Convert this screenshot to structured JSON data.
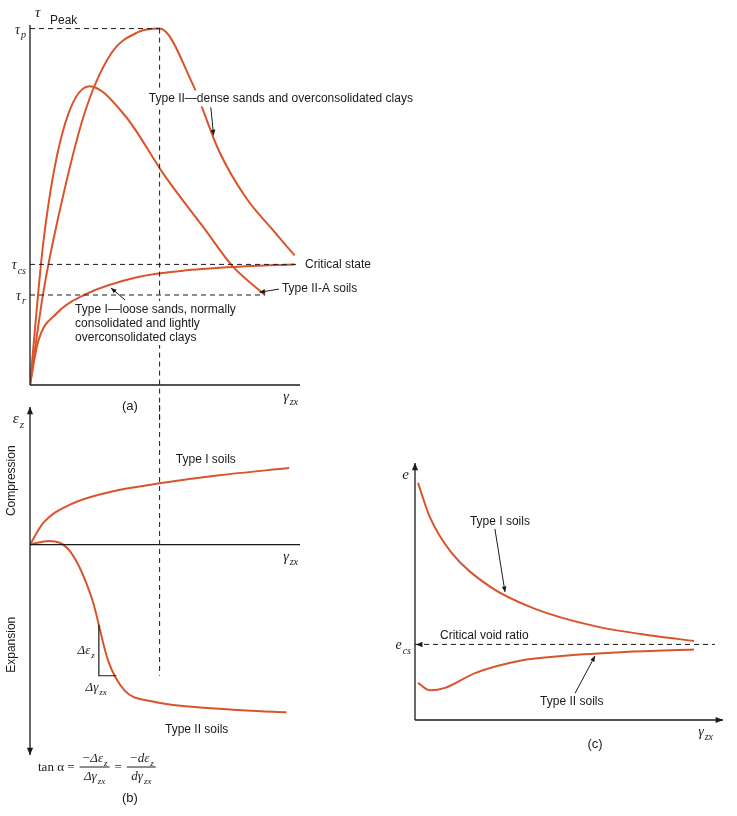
{
  "chart_data": [
    {
      "panel": "(a)",
      "type": "line",
      "tick_labels": false,
      "grid": false,
      "x_label": {
        "base": "γ",
        "sub": "zx"
      },
      "y_label": {
        "base": "τ"
      },
      "xlim": [
        0,
        10
      ],
      "ylim": [
        0,
        10
      ],
      "series": [
        {
          "name": "Type II—dense sands and overconsolidated clays",
          "color": "#d9542b",
          "x": [
            0,
            0.5,
            1,
            2,
            3,
            4,
            4.8,
            6,
            7,
            8,
            9,
            9.8
          ],
          "values": [
            0,
            2.6,
            4.5,
            7.5,
            9.2,
            9.8,
            9.9,
            8.4,
            6.5,
            5.2,
            4.3,
            3.6
          ]
        },
        {
          "name": "Type II-A soils",
          "color": "#d9542b",
          "x": [
            0,
            0.5,
            1.2,
            2.2,
            3.5,
            5,
            6.5,
            7.5,
            8.7
          ],
          "values": [
            0,
            4,
            7,
            8.3,
            7.5,
            5.8,
            4.3,
            3.3,
            2.5
          ]
        },
        {
          "name": "Type I—loose sands, normally consolidated and lightly overconsolidated clays",
          "color": "#d9542b",
          "x": [
            0,
            0.3,
            1,
            2,
            4,
            6,
            8,
            9.8
          ],
          "values": [
            0,
            1.2,
            2,
            2.5,
            3,
            3.2,
            3.3,
            3.35
          ]
        }
      ],
      "reference_lines": [
        {
          "axis": "y",
          "value": 9.9,
          "x_range": [
            0,
            4.8
          ],
          "label": {
            "base": "τ",
            "sub": "p"
          },
          "text": "Peak"
        },
        {
          "axis": "y",
          "value": 3.35,
          "x_range": [
            0,
            10
          ],
          "label": {
            "base": "τ",
            "sub": "cs"
          },
          "text": "Critical state"
        },
        {
          "axis": "y",
          "value": 2.5,
          "x_range": [
            0,
            8.7
          ],
          "label": {
            "base": "τ",
            "sub": "r"
          }
        },
        {
          "axis": "x",
          "value": 4.8,
          "y_range": [
            9.9,
            0
          ]
        }
      ]
    },
    {
      "panel": "(b)",
      "type": "line",
      "tick_labels": false,
      "grid": false,
      "x_label": {
        "base": "γ",
        "sub": "zx"
      },
      "y_label": {
        "base": "ε",
        "sub": "z"
      },
      "y_directions": [
        "Compression",
        "Expansion"
      ],
      "xlim": [
        0,
        10
      ],
      "ylim": [
        -5.5,
        3.5
      ],
      "series": [
        {
          "name": "Type I soils",
          "color": "#d9542b",
          "x": [
            0,
            0.5,
            1.5,
            3,
            5,
            7,
            9.6
          ],
          "values": [
            0,
            0.6,
            1.1,
            1.45,
            1.7,
            1.9,
            2.1
          ]
        },
        {
          "name": "Type II soils",
          "color": "#d9542b",
          "x": [
            0,
            0.7,
            1.5,
            2.3,
            2.9,
            3.5,
            4.5,
            6,
            8,
            9.5
          ],
          "values": [
            0,
            0.1,
            -0.2,
            -1.5,
            -3.2,
            -4,
            -4.3,
            -4.45,
            -4.55,
            -4.6
          ]
        }
      ],
      "reference_lines": [
        {
          "axis": "x",
          "value": 4.8,
          "y_range": [
            3.5,
            -3.6
          ]
        }
      ],
      "tangent": {
        "x": [
          2.55,
          2.55,
          3.2
        ],
        "values": [
          -2.2,
          -3.6,
          -3.6
        ],
        "labels": [
          {
            "base": "Δε",
            "sub": "z"
          },
          {
            "base": "Δγ",
            "sub": "zx"
          }
        ]
      },
      "formula": {
        "lhs": "tan α =",
        "joiner": "=",
        "fractions": [
          {
            "num": {
              "base": "−Δε",
              "sub": "z"
            },
            "den": {
              "base": "Δγ",
              "sub": "zx"
            }
          },
          {
            "num": {
              "base": "−dε",
              "sub": "z"
            },
            "den": {
              "base": "dγ",
              "sub": "zx"
            }
          }
        ]
      }
    },
    {
      "panel": "(c)",
      "type": "line",
      "tick_labels": false,
      "grid": false,
      "x_label": {
        "base": "γ",
        "sub": "zx"
      },
      "y_label": {
        "base": "e"
      },
      "xlim": [
        0,
        10
      ],
      "ylim": [
        0,
        10
      ],
      "series": [
        {
          "name": "Type I soils",
          "color": "#d9542b",
          "x": [
            0.1,
            0.5,
            1.2,
            2.5,
            4,
            6,
            8,
            9.3
          ],
          "values": [
            9.6,
            8.2,
            6.8,
            5.4,
            4.5,
            3.8,
            3.4,
            3.2
          ]
        },
        {
          "name": "Type II soils",
          "color": "#d9542b",
          "x": [
            0.1,
            0.5,
            1,
            2,
            3.5,
            5,
            7,
            9.3
          ],
          "values": [
            1.5,
            1.2,
            1.3,
            1.9,
            2.4,
            2.6,
            2.75,
            2.85
          ]
        }
      ],
      "reference_lines": [
        {
          "axis": "y",
          "value": 3.06,
          "x_range": [
            0,
            10
          ],
          "label": {
            "base": "e",
            "sub": "cs"
          },
          "text": "Critical void ratio"
        }
      ]
    }
  ]
}
